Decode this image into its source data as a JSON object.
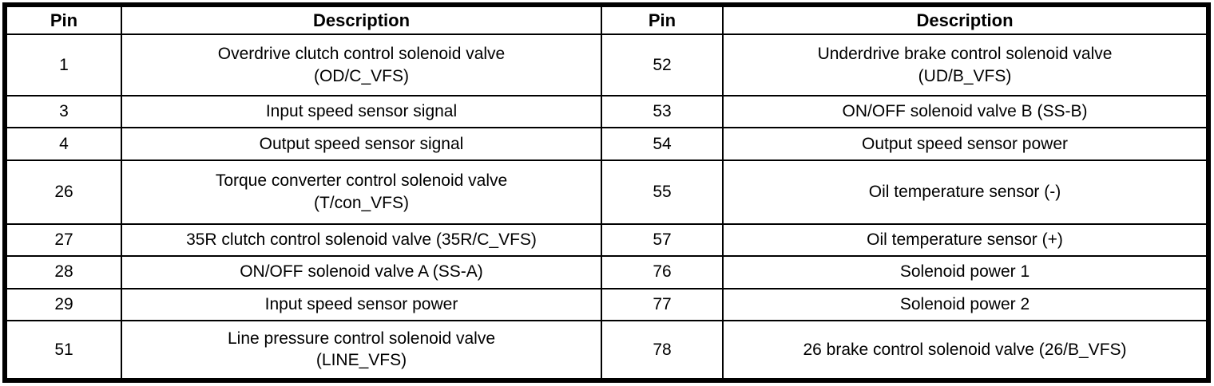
{
  "page": {
    "background_color": "#ffffff",
    "border_color": "#000000",
    "text_color": "#000000"
  },
  "table": {
    "title": "connector-pin-description-table",
    "headers": {
      "pin_left": "Pin",
      "desc_left": "Description",
      "pin_right": "Pin",
      "desc_right": "Description"
    },
    "rows": [
      {
        "pin_l": "1",
        "desc_l": "Overdrive clutch control solenoid valve\n(OD/C_VFS)",
        "pin_r": "52",
        "desc_r": "Underdrive brake control solenoid valve\n(UD/B_VFS)"
      },
      {
        "pin_l": "3",
        "desc_l": "Input speed sensor signal",
        "pin_r": "53",
        "desc_r": "ON/OFF solenoid valve B (SS-B)"
      },
      {
        "pin_l": "4",
        "desc_l": "Output speed sensor signal",
        "pin_r": "54",
        "desc_r": "Output speed sensor power"
      },
      {
        "pin_l": "26",
        "desc_l": "Torque converter control solenoid valve\n(T/con_VFS)",
        "pin_r": "55",
        "desc_r": "Oil temperature sensor (-)"
      },
      {
        "pin_l": "27",
        "desc_l": "35R clutch control solenoid valve (35R/C_VFS)",
        "pin_r": "57",
        "desc_r": "Oil temperature sensor (+)"
      },
      {
        "pin_l": "28",
        "desc_l": "ON/OFF solenoid valve A (SS-A)",
        "pin_r": "76",
        "desc_r": "Solenoid power 1"
      },
      {
        "pin_l": "29",
        "desc_l": "Input speed sensor power",
        "pin_r": "77",
        "desc_r": "Solenoid power 2"
      },
      {
        "pin_l": "51",
        "desc_l": "Line pressure control solenoid valve\n(LINE_VFS)",
        "pin_r": "78",
        "desc_r": "26 brake control solenoid valve (26/B_VFS)"
      }
    ]
  }
}
